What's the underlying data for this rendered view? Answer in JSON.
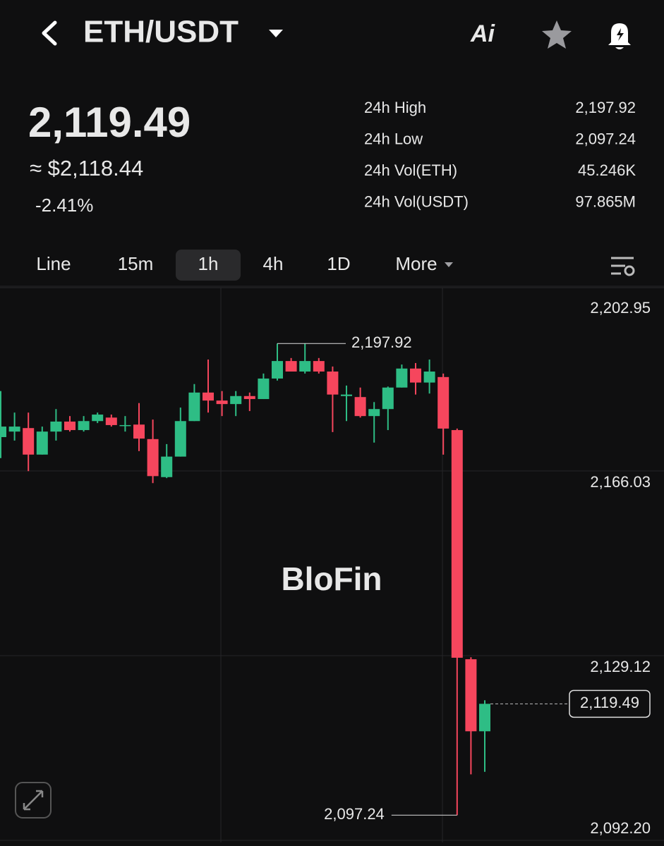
{
  "header": {
    "pair": "ETH/USDT",
    "ai_label": "Ai"
  },
  "ticker": {
    "price": "2,119.49",
    "usd_price": "≈ $2,118.44",
    "change": "-2.41%",
    "stats": [
      [
        "24h High",
        "2,197.92"
      ],
      [
        "24h Low",
        "2,097.24"
      ],
      [
        "24h Vol(ETH)",
        "45.246K"
      ],
      [
        "24h Vol(USDT)",
        "97.865M"
      ]
    ]
  },
  "tabs": {
    "items": [
      "Line",
      "15m",
      "1h",
      "4h",
      "1D",
      "More"
    ],
    "active": 2
  },
  "chart_data": {
    "type": "candlestick",
    "watermark": "BloFin",
    "up_color": "#2ebd85",
    "down_color": "#f6465d",
    "ylim": [
      2092.2,
      2202.95
    ],
    "yticks": [
      {
        "value": 2202.95,
        "label": "2,202.95"
      },
      {
        "value": 2166.03,
        "label": "2,166.03"
      },
      {
        "value": 2129.12,
        "label": "2,129.12"
      },
      {
        "value": 2092.2,
        "label": "2,092.20"
      }
    ],
    "grid": true,
    "max_label": "2,197.92",
    "min_label": "2,097.24",
    "last_label": "2,119.49",
    "ohlc": [
      [
        2172.8,
        2182.0,
        2168.6,
        2174.9
      ],
      [
        2173.9,
        2177.7,
        2172.1,
        2174.9
      ],
      [
        2174.6,
        2177.7,
        2166.0,
        2169.3
      ],
      [
        2169.3,
        2174.9,
        2169.3,
        2173.9
      ],
      [
        2173.9,
        2178.4,
        2172.1,
        2175.9
      ],
      [
        2175.9,
        2177.0,
        2173.9,
        2174.2
      ],
      [
        2174.2,
        2177.0,
        2173.9,
        2176.0
      ],
      [
        2176.0,
        2177.7,
        2175.6,
        2177.3
      ],
      [
        2176.7,
        2177.3,
        2174.9,
        2175.2
      ],
      [
        2175.2,
        2177.0,
        2173.9,
        2175.2
      ],
      [
        2175.3,
        2179.6,
        2170.0,
        2172.5
      ],
      [
        2172.4,
        2176.3,
        2163.6,
        2165.0
      ],
      [
        2164.8,
        2171.4,
        2164.6,
        2168.9
      ],
      [
        2168.9,
        2178.7,
        2168.9,
        2176.0
      ],
      [
        2176.0,
        2183.4,
        2176.0,
        2181.7
      ],
      [
        2181.7,
        2188.3,
        2177.7,
        2180.1
      ],
      [
        2180.1,
        2182.0,
        2177.0,
        2179.4
      ],
      [
        2179.4,
        2182.0,
        2177.0,
        2181.0
      ],
      [
        2181.0,
        2181.7,
        2178.0,
        2180.4
      ],
      [
        2180.4,
        2185.5,
        2180.4,
        2184.5
      ],
      [
        2184.5,
        2191.5,
        2184.1,
        2188.0
      ],
      [
        2188.0,
        2188.6,
        2185.9,
        2185.9
      ],
      [
        2185.9,
        2191.5,
        2185.5,
        2188.0
      ],
      [
        2188.0,
        2188.6,
        2185.5,
        2185.9
      ],
      [
        2185.9,
        2186.9,
        2173.8,
        2181.3
      ],
      [
        2181.0,
        2183.1,
        2176.0,
        2181.3
      ],
      [
        2180.8,
        2182.7,
        2176.7,
        2177.0
      ],
      [
        2177.0,
        2179.8,
        2171.7,
        2178.4
      ],
      [
        2178.4,
        2182.9,
        2174.2,
        2182.7
      ],
      [
        2182.7,
        2187.3,
        2182.7,
        2186.5
      ],
      [
        2186.5,
        2187.6,
        2181.3,
        2183.7
      ],
      [
        2183.7,
        2188.3,
        2181.5,
        2185.9
      ],
      [
        2184.8,
        2185.5,
        2169.3,
        2174.5
      ],
      [
        2174.2,
        2174.5,
        2097.24,
        2128.7
      ],
      [
        2128.4,
        2128.8,
        2105.4,
        2114.0
      ],
      [
        2114.0,
        2120.2,
        2105.9,
        2119.49
      ]
    ]
  }
}
